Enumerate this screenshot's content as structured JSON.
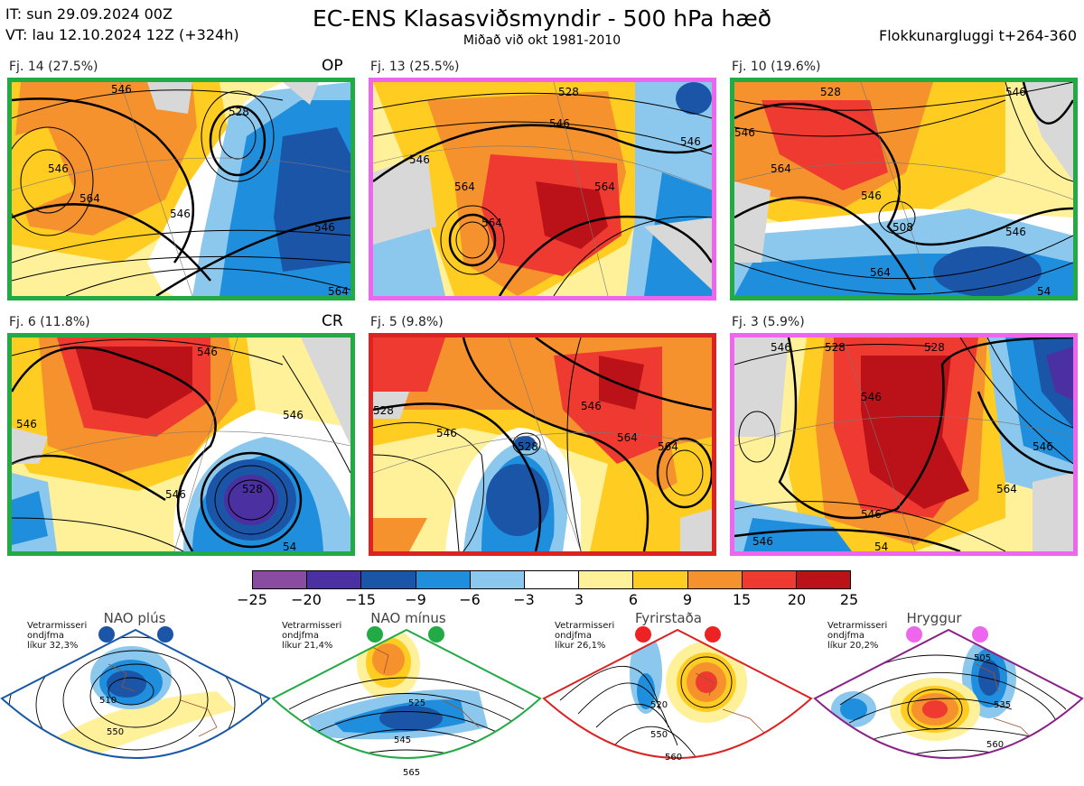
{
  "header": {
    "it_line": "IT: sun 29.09.2024 00Z",
    "vt_line": "VT: lau 12.10.2024 12Z  (+324h)",
    "title": "EC-ENS Klasasviðsmyndir - 500 hPa hæð",
    "subtitle": "Miðað við okt 1981-2010",
    "window": "Flokkunargluggi t+264-360"
  },
  "panels": [
    {
      "label": "Fj. 14 (27.5%)",
      "tag": "OP",
      "border_color": "#22aa44",
      "contours": [
        "546",
        "546",
        "564",
        "528",
        "546",
        "546",
        "564"
      ]
    },
    {
      "label": "Fj. 13 (25.5%)",
      "tag": "",
      "border_color": "#ee66ee",
      "contours": [
        "528",
        "546",
        "546",
        "546",
        "564",
        "564",
        "564"
      ]
    },
    {
      "label": "Fj. 10 (19.6%)",
      "tag": "",
      "border_color": "#22aa44",
      "contours": [
        "528",
        "546",
        "546",
        "564",
        "546",
        "546",
        "508",
        "564",
        "54"
      ]
    },
    {
      "label": "Fj. 6 (11.8%)",
      "tag": "CR",
      "border_color": "#22aa44",
      "contours": [
        "546",
        "546",
        "546",
        "528",
        "546",
        "54"
      ]
    },
    {
      "label": "Fj. 5 (9.8%)",
      "tag": "",
      "border_color": "#dd2222",
      "contours": [
        "528",
        "546",
        "546",
        "528",
        "564",
        "564"
      ]
    },
    {
      "label": "Fj. 3 (5.9%)",
      "tag": "",
      "border_color": "#ee66ee",
      "contours": [
        "528",
        "528",
        "546",
        "546",
        "546",
        "564",
        "546",
        "546",
        "54"
      ]
    }
  ],
  "colorbar": {
    "ticks": [
      "−25",
      "−20",
      "−15",
      "−9",
      "−6",
      "−3",
      "3",
      "6",
      "9",
      "15",
      "20",
      "25"
    ],
    "colors": [
      "#8a4ca0",
      "#4a30a0",
      "#1a55a8",
      "#1f8fdd",
      "#8cc8ee",
      "#ffffff",
      "#fff09a",
      "#ffcc22",
      "#f5922e",
      "#ee3a30",
      "#bb1118"
    ]
  },
  "regimes": [
    {
      "name": "NAO plús",
      "note": [
        "Vetrarmisseri",
        "ondjfma",
        "líkur 32,3%"
      ],
      "color": "#1858a8",
      "dot_color": "#1a55a8",
      "contours": [
        "510",
        "550"
      ]
    },
    {
      "name": "NAO mínus",
      "note": [
        "Vetrarmisseri",
        "ondjfma",
        "líkur 21,4%"
      ],
      "color": "#22aa44",
      "dot_color": "#22aa44",
      "contours": [
        "525",
        "545",
        "565"
      ]
    },
    {
      "name": "Fyrirstaða",
      "note": [
        "Vetrarmisseri",
        "ondjfma",
        "líkur 26,1%"
      ],
      "color": "#dd2222",
      "dot_color": "#ee2222",
      "contours": [
        "520",
        "550",
        "560"
      ]
    },
    {
      "name": "Hryggur",
      "note": [
        "Vetrarmisseri",
        "ondjfma",
        "líkur 20,2%"
      ],
      "color": "#882288",
      "dot_color": "#ee66ee",
      "contours": [
        "505",
        "535",
        "560"
      ]
    }
  ]
}
